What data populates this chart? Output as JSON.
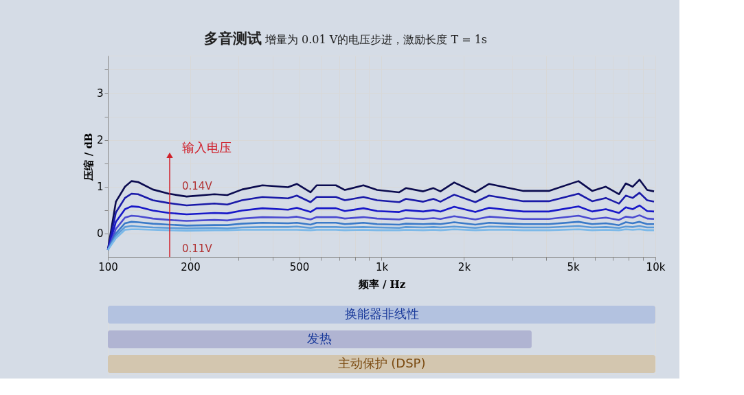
{
  "chart_data": {
    "type": "line",
    "title": "多音测试",
    "subtitle": "增量为 0.01 V的电压步进，激励长度 T = 1s",
    "xlabel": "频率 / Hz",
    "ylabel": "压缩 / dB",
    "log": "x",
    "x": [
      100,
      107,
      115.5,
      122,
      129,
      146,
      167,
      194,
      245,
      273,
      309,
      367,
      455,
      490,
      550,
      579,
      681,
      734,
      858,
      963,
      1159,
      1227,
      1419,
      1546,
      1640,
      1841,
      2199,
      2469,
      2922,
      3297,
      4081,
      5236,
      5875,
      6592,
      7362,
      7798,
      8260,
      8750,
      9333,
      9886
    ],
    "series": [
      {
        "color": "#0b0b4f",
        "values": [
          -0.35,
          0.68,
          1.0,
          1.12,
          1.1,
          0.94,
          0.85,
          0.79,
          0.84,
          0.82,
          0.94,
          1.03,
          0.99,
          1.06,
          0.88,
          1.03,
          1.03,
          0.93,
          1.03,
          0.93,
          0.88,
          0.97,
          0.9,
          0.97,
          0.9,
          1.09,
          0.88,
          1.06,
          0.97,
          0.91,
          0.91,
          1.12,
          0.91,
          1.0,
          0.84,
          1.07,
          1.0,
          1.15,
          0.93,
          0.9
        ]
      },
      {
        "color": "#1a1aa8",
        "values": [
          -0.35,
          0.45,
          0.76,
          0.85,
          0.84,
          0.71,
          0.65,
          0.6,
          0.64,
          0.62,
          0.71,
          0.78,
          0.75,
          0.81,
          0.67,
          0.78,
          0.78,
          0.71,
          0.78,
          0.71,
          0.67,
          0.74,
          0.68,
          0.74,
          0.68,
          0.83,
          0.67,
          0.81,
          0.74,
          0.69,
          0.69,
          0.85,
          0.69,
          0.76,
          0.64,
          0.81,
          0.76,
          0.87,
          0.71,
          0.68
        ]
      },
      {
        "color": "#1818c8",
        "values": [
          -0.35,
          0.25,
          0.52,
          0.58,
          0.57,
          0.49,
          0.44,
          0.41,
          0.44,
          0.43,
          0.49,
          0.54,
          0.51,
          0.55,
          0.46,
          0.54,
          0.54,
          0.48,
          0.54,
          0.48,
          0.46,
          0.5,
          0.47,
          0.5,
          0.47,
          0.57,
          0.46,
          0.55,
          0.5,
          0.47,
          0.47,
          0.58,
          0.47,
          0.52,
          0.44,
          0.56,
          0.52,
          0.6,
          0.48,
          0.47
        ]
      },
      {
        "color": "#4a4ad0",
        "values": [
          -0.35,
          0.1,
          0.34,
          0.38,
          0.37,
          0.32,
          0.29,
          0.27,
          0.29,
          0.28,
          0.32,
          0.35,
          0.34,
          0.36,
          0.3,
          0.35,
          0.35,
          0.32,
          0.35,
          0.32,
          0.3,
          0.33,
          0.31,
          0.33,
          0.31,
          0.37,
          0.3,
          0.36,
          0.33,
          0.31,
          0.31,
          0.38,
          0.31,
          0.34,
          0.29,
          0.36,
          0.34,
          0.39,
          0.32,
          0.31
        ]
      },
      {
        "color": "#3a7ac8",
        "values": [
          -0.35,
          0.0,
          0.22,
          0.25,
          0.24,
          0.21,
          0.19,
          0.17,
          0.18,
          0.18,
          0.21,
          0.23,
          0.22,
          0.23,
          0.19,
          0.23,
          0.23,
          0.2,
          0.23,
          0.2,
          0.19,
          0.21,
          0.2,
          0.21,
          0.2,
          0.24,
          0.19,
          0.23,
          0.21,
          0.2,
          0.2,
          0.25,
          0.2,
          0.22,
          0.18,
          0.24,
          0.22,
          0.25,
          0.2,
          0.2
        ]
      },
      {
        "color": "#5a9ad8",
        "values": [
          -0.35,
          -0.05,
          0.14,
          0.16,
          0.15,
          0.13,
          0.12,
          0.11,
          0.12,
          0.11,
          0.13,
          0.14,
          0.14,
          0.15,
          0.12,
          0.14,
          0.14,
          0.13,
          0.14,
          0.13,
          0.12,
          0.14,
          0.13,
          0.14,
          0.13,
          0.15,
          0.12,
          0.15,
          0.14,
          0.13,
          0.13,
          0.16,
          0.13,
          0.14,
          0.12,
          0.15,
          0.14,
          0.16,
          0.13,
          0.13
        ]
      },
      {
        "color": "#7ab8e8",
        "values": [
          -0.35,
          -0.1,
          0.08,
          0.09,
          0.09,
          0.08,
          0.07,
          0.06,
          0.07,
          0.07,
          0.08,
          0.08,
          0.08,
          0.08,
          0.07,
          0.08,
          0.08,
          0.07,
          0.08,
          0.07,
          0.07,
          0.08,
          0.07,
          0.08,
          0.07,
          0.09,
          0.07,
          0.08,
          0.08,
          0.07,
          0.07,
          0.09,
          0.07,
          0.08,
          0.07,
          0.09,
          0.08,
          0.09,
          0.07,
          0.07
        ]
      }
    ],
    "xlim": [
      100,
      10000
    ],
    "xticks": [
      100,
      200,
      {
        "value": 300,
        "label": null
      },
      {
        "value": 400,
        "label": null
      },
      500,
      {
        "value": 600,
        "label": null
      },
      {
        "value": 700,
        "label": null
      },
      {
        "value": 800,
        "label": null
      },
      {
        "value": 900,
        "label": null
      },
      {
        "value": 1000,
        "label": "1k"
      },
      {
        "value": 2000,
        "label": "2k"
      },
      {
        "value": 3000,
        "label": null
      },
      {
        "value": 4000,
        "label": null
      },
      {
        "value": 5000,
        "label": "5k"
      },
      {
        "value": 6000,
        "label": null
      },
      {
        "value": 7000,
        "label": null
      },
      {
        "value": 8000,
        "label": null
      },
      {
        "value": 9000,
        "label": null
      },
      {
        "value": 10000,
        "label": "10k"
      }
    ],
    "ylim": [
      -0.5,
      3.8
    ],
    "yticks": [
      0,
      {
        "value": 0.5,
        "label": null
      },
      1,
      {
        "value": 1.5,
        "label": null
      },
      2,
      {
        "value": 2.5,
        "label": null
      },
      3,
      {
        "value": 3.5,
        "label": null
      }
    ],
    "grid": true,
    "legend": false,
    "marker": "none",
    "line_style": "solid",
    "annotations": [
      "输入电压",
      "0.14V",
      "0.11V",
      "换能器非线性",
      "发热",
      "主动保护 (DSP)"
    ]
  }
}
